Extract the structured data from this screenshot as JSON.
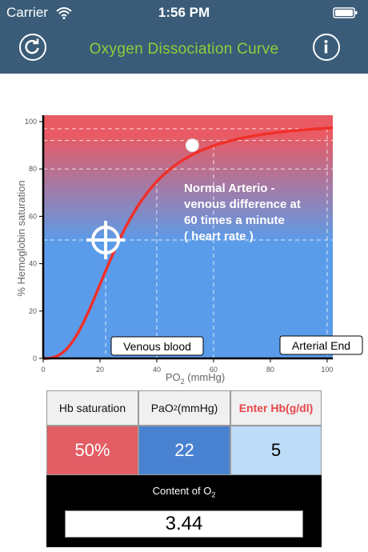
{
  "status_bar": {
    "carrier": "Carrier",
    "time": "1:56 PM",
    "icons": [
      "wifi-icon",
      "battery-icon"
    ]
  },
  "nav": {
    "title": "Oxygen Dissociation Curve",
    "title_color": "#8fce3a",
    "bar_color": "#3a5c78",
    "left_button_icon": "refresh-icon",
    "right_button_icon": "info-icon"
  },
  "chart": {
    "ylabel": "% Hemoglobin saturation",
    "xlabel_main": "PO",
    "xlabel_sub": "2",
    "xlabel_suffix": " (mmHg)",
    "x_ticks": [
      "0",
      "20",
      "40",
      "60",
      "80",
      "100"
    ],
    "y_ticks": [
      "0",
      "20",
      "40",
      "60",
      "80",
      "100"
    ],
    "annotation_lines": [
      "Normal Arterio -",
      "venous difference at",
      "60 times a minute",
      "( heart rate )"
    ],
    "venous_label": "Venous blood",
    "arterial_label": "Arterial End",
    "gradient_top": "#e95a63",
    "gradient_bottom": "#5b9cea",
    "curve_color": "#f0302a"
  },
  "chart_data": {
    "type": "line",
    "x_range": [
      0,
      102
    ],
    "y_range": [
      0,
      100
    ],
    "curve_p50": 26.8,
    "curve_n": 2.7,
    "cursor": {
      "x": 22,
      "y": 50,
      "icon": "crosshair-icon"
    },
    "marker": {
      "x": 52.5,
      "y": 90,
      "icon": "marker-ball-icon"
    },
    "reference_vlines": [
      22,
      40,
      60,
      100
    ],
    "reference_hlines": [
      50,
      80,
      92,
      97
    ]
  },
  "table": {
    "headers": [
      {
        "text": "Hb saturation"
      },
      {
        "text": "PaO",
        "sub": "2",
        "suffix": " (mmHg)"
      },
      {
        "text": "Enter Hb(g/dl)"
      }
    ],
    "saturation_value": "50%",
    "pao2_value": "22",
    "hb_value": "5",
    "content_label_main": "Content of O",
    "content_label_sub": "2",
    "content_value": "3.44",
    "colors": {
      "saturation_cell": "#e35d64",
      "pao2_cell": "#4a82d2",
      "hb_cell": "#bcdcf8",
      "header_red": "#e8464a"
    }
  }
}
